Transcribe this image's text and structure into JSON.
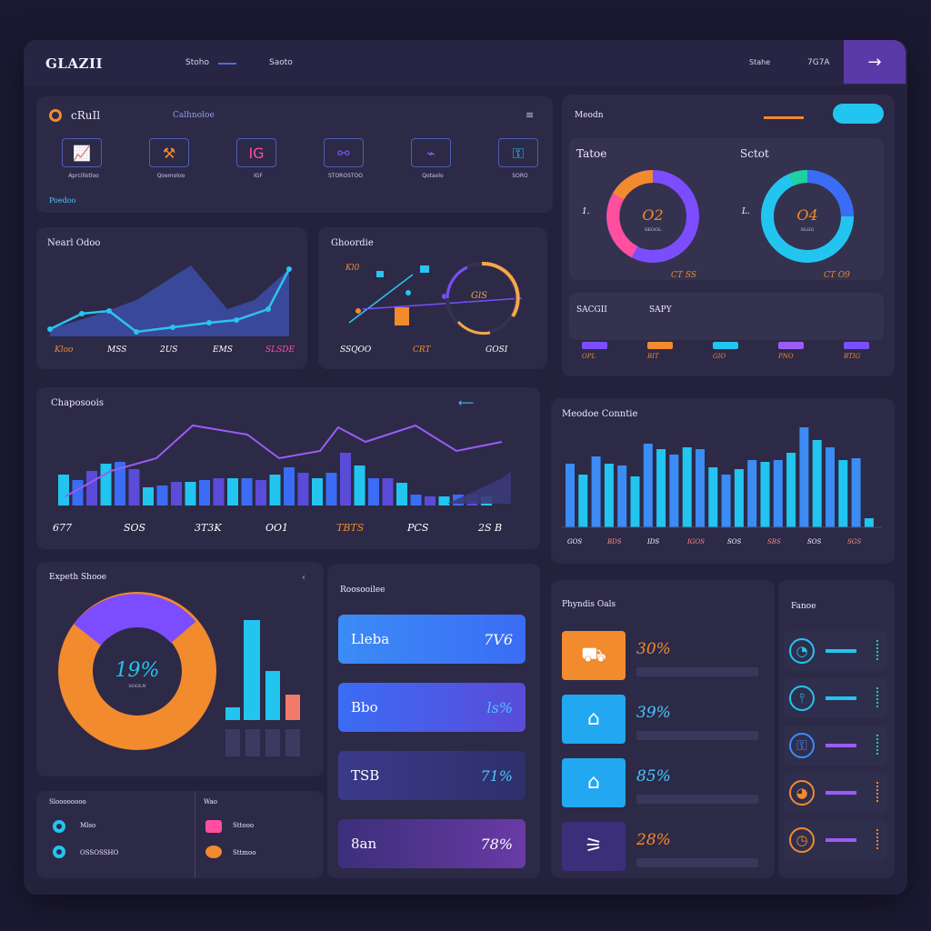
{
  "header": {
    "logo": "GLAZII",
    "nav": [
      "Stoho",
      "Saoto"
    ],
    "right_a": "Stahe",
    "right_b": "7G7A",
    "arrow": "→"
  },
  "colors": {
    "orange": "#f28a2e",
    "purple": "#7c4dff",
    "cyan": "#22c5f0",
    "blue": "#3b6cf5",
    "pink": "#ff4f9e"
  },
  "apps": {
    "title": "cRuIl",
    "subtitle": "Calhnoloe",
    "footer": "Poedoo",
    "items": [
      {
        "icon": "chart-icon",
        "label": "Aprcillotloo"
      },
      {
        "icon": "tool-icon",
        "label": "Qoemoloo"
      },
      {
        "icon": "text-icon",
        "label": "IGF"
      },
      {
        "icon": "share-icon",
        "label": "STOROSTOO"
      },
      {
        "icon": "graph-icon",
        "label": "Qotaolo"
      },
      {
        "icon": "lock-icon",
        "label": "SORO"
      }
    ]
  },
  "areaCard": {
    "title": "Nearl Odoo",
    "ticks": [
      "Kloo",
      "MSS",
      "2US",
      "EMS",
      "SLSDE"
    ]
  },
  "scatterCard": {
    "title": "Ghoordie",
    "label": "Kl0",
    "ring": "GlS",
    "ticks": [
      "SSQOO",
      "CRT",
      "GOSI"
    ]
  },
  "donutsCard": {
    "title": "Meodn",
    "left": {
      "label": "Tatoe",
      "value": "O2",
      "sub": "SKOOL",
      "legend": "CT SS",
      "lead": "1."
    },
    "right": {
      "label": "Sctot",
      "value": "O4",
      "sub": "SLGG",
      "legend": "CT O9",
      "lead": "L."
    },
    "row": [
      "SACGII",
      "SAPY"
    ],
    "footer": [
      "OPL",
      "BIT",
      "GIO",
      "PNO",
      "BTIG"
    ]
  },
  "comboCard": {
    "title": "Chaposoois",
    "ticks": [
      "677",
      "SOS",
      "3T3K",
      "OO1",
      "TBTS",
      "PCS",
      "2S B"
    ]
  },
  "barsCard": {
    "title": "Meodoe Conntie",
    "ticks": [
      "GOS",
      "BDS",
      "IDS",
      "IGOS",
      "SOS",
      "SBS",
      "SOS",
      "SGS"
    ]
  },
  "pieCard": {
    "title": "Expeth Shooe",
    "value": "19%",
    "sub": "SOOLN"
  },
  "miniLegend": {
    "left": {
      "title": "Sloooooooo",
      "items": [
        "Mlso",
        "OSSOSSHO"
      ]
    },
    "right": {
      "title": "Wao",
      "items": [
        "Sttooo",
        "Sttmoo"
      ]
    }
  },
  "statsCard": {
    "title": "Roosooilee",
    "items": [
      {
        "label": "Lleba",
        "value": "7V6"
      },
      {
        "label": "Bbo",
        "value": "ls%"
      },
      {
        "label": "TSB",
        "value": "71%"
      },
      {
        "label": "8an",
        "value": "78%"
      }
    ]
  },
  "progressCard": {
    "title": "Phyndis Oals",
    "items": [
      {
        "icon": "truck-icon",
        "value": "30%"
      },
      {
        "icon": "store-icon",
        "value": "39%"
      },
      {
        "icon": "house-icon",
        "value": "85%"
      },
      {
        "icon": "road-icon",
        "value": "28%"
      }
    ]
  },
  "sideList": {
    "title": "Fanoe",
    "icons": [
      "chart-icon",
      "graph-icon",
      "lock-icon",
      "flame-icon",
      "clock-icon"
    ]
  }
}
